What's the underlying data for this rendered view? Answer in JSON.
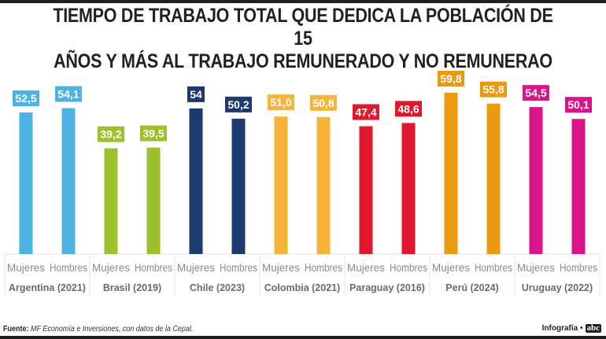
{
  "chart_data": {
    "type": "bar",
    "title": "TIEMPO DE TRABAJO TOTAL QUE DEDICA LA POBLACIÓN DE 15 AÑOS Y MÁS AL TRABAJO REMUNERADO Y NO REMUNERAO",
    "title_lines": [
      "TIEMPO DE TRABAJO TOTAL QUE DEDICA LA POBLACIÓN DE 15",
      "AÑOS Y MÁS AL TRABAJO REMUNERADO Y NO REMUNERAO"
    ],
    "xlabel": "",
    "ylabel": "",
    "ylim": [
      0,
      62
    ],
    "grid": false,
    "legend": "none",
    "subcategories": [
      "Mujeres",
      "Hombres"
    ],
    "groups": [
      {
        "name": "Argentina (2021)",
        "color": "#4eb3e3",
        "values": [
          52.5,
          54.1
        ],
        "labels": [
          "52,5",
          "54,1"
        ]
      },
      {
        "name": "Brasil (2019)",
        "color": "#9dc02d",
        "values": [
          39.2,
          39.5
        ],
        "labels": [
          "39,2",
          "39,5"
        ]
      },
      {
        "name": "Chile (2023)",
        "color": "#1c3a70",
        "values": [
          54,
          50.2
        ],
        "labels": [
          "54",
          "50,2"
        ]
      },
      {
        "name": "Colombia (2021)",
        "color": "#f6b53a",
        "values": [
          51.0,
          50.8
        ],
        "labels": [
          "51,0",
          "50,8"
        ]
      },
      {
        "name": "Paraguay (2016)",
        "color": "#e0182d",
        "values": [
          47.4,
          48.6
        ],
        "labels": [
          "47,4",
          "48,6"
        ]
      },
      {
        "name": "Perú (2024)",
        "color": "#ea9a10",
        "values": [
          59.8,
          55.8
        ],
        "labels": [
          "59,8",
          "55,8"
        ]
      },
      {
        "name": "Uruguay (2022)",
        "color": "#d9158a",
        "values": [
          54.5,
          50.1
        ],
        "labels": [
          "54,5",
          "50,1"
        ]
      }
    ]
  },
  "footer": {
    "source_label": "Fuente:",
    "source_text": "MF Economía e Inversiones, con datos de la Cepal.",
    "credit": "Infografía •",
    "logo": "abc"
  }
}
